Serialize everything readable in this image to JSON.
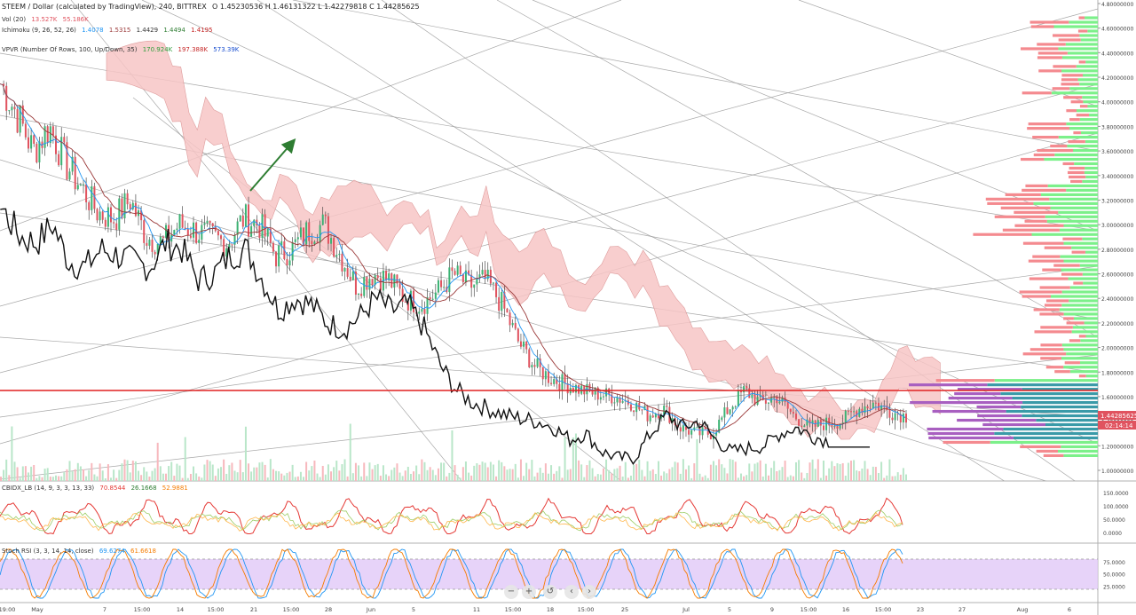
{
  "header": {
    "title": "STEEM / Dollar (calculated by TradingView), 240, BITTREX",
    "ohlc": "O 1.45230536  H 1.46131322  L 1.42279818  C 1.44285625",
    "vol_label": "Vol (20)",
    "vol_values": [
      "13.527K",
      "55.186K"
    ],
    "ichimoku_label": "Ichimoku (9, 26, 52, 26)",
    "ichimoku_values": [
      "1.4078",
      "1.5315",
      "1.4429",
      "1.4494",
      "1.4195"
    ],
    "vpvr_label": "VPVR (Number Of Rows, 100, Up/Down, 35)",
    "vpvr_values": [
      "170.924K",
      "197.388K",
      "573.39K"
    ]
  },
  "indicators": {
    "cbidx_label": "CBIDX_LB (14, 9, 3, 3, 13, 33)",
    "cbidx_values": [
      "70.8544",
      "26.1668",
      "52.9881"
    ],
    "stoch_label": "Stoch RSI (3, 3, 14, 14, close)",
    "stoch_values": [
      "69.6274",
      "61.6618"
    ]
  },
  "colors": {
    "up": "#3bb273",
    "down": "#e0535f",
    "resistance": "#e02020",
    "kijun": "#9b3a3a",
    "tenkan": "#2196f3",
    "cloud_bear": "#f7c6c6",
    "cloud_bull": "#d6ecd2",
    "arrow": "#2e7d32",
    "vpvr_up": "#7cf08a",
    "vpvr_down": "#f48a8f",
    "vpvr_va_up": "#3a9aa8",
    "vpvr_va_down": "#a85fc0",
    "cbidx_fast": "#e53935",
    "cbidx_slow": "#9ccc65",
    "cbidx_sig": "#ffb74d",
    "stoch_k": "#2196f3",
    "stoch_d": "#f57c00",
    "stoch_band": "#e1c8f7"
  },
  "price_axis": {
    "ticks": [
      "4.80000000",
      "4.60000000",
      "4.40000000",
      "4.20000000",
      "4.00000000",
      "3.80000000",
      "3.60000000",
      "3.40000000",
      "3.20000000",
      "3.00000000",
      "2.80000000",
      "2.60000000",
      "2.40000000",
      "2.20000000",
      "2.00000000",
      "1.80000000",
      "1.60000000",
      "1.40000000",
      "1.20000000",
      "1.00000000"
    ],
    "last_price": "1.44285625",
    "countdown": "02:14:14"
  },
  "cbidx_axis": [
    "150.0000",
    "100.0000",
    "50.0000",
    "0.0000"
  ],
  "stoch_axis": [
    "75.0000",
    "50.0000",
    "25.0000"
  ],
  "time_axis": {
    "labels": [
      "19:00",
      "May",
      "7",
      "15:00",
      "14",
      "15:00",
      "21",
      "15:00",
      "28",
      "Jun",
      "5",
      "11",
      "15:00",
      "18",
      "15:00",
      "25",
      "Jul",
      "5",
      "9",
      "15:00",
      "16",
      "15:00",
      "23",
      "27",
      "Aug",
      "6"
    ]
  },
  "toolbar": [
    "−",
    "+",
    "↺",
    "‹",
    "›"
  ],
  "chart_data": {
    "type": "candlestick",
    "title": "STEEM / Dollar (calculated by TradingView), 240, BITTREX",
    "close_path": [
      4.15,
      3.9,
      3.6,
      3.8,
      3.5,
      3.3,
      3.1,
      3.05,
      3.2,
      2.9,
      2.85,
      3.0,
      2.95,
      2.9,
      2.85,
      3.05,
      3.0,
      2.75,
      2.8,
      2.95,
      3.0,
      2.75,
      2.5,
      2.6,
      2.55,
      2.4,
      2.35,
      2.45,
      2.6,
      2.5,
      2.55,
      2.35,
      2.05,
      1.85,
      1.75,
      1.7,
      1.65,
      1.62,
      1.6,
      1.55,
      1.45,
      1.5,
      1.35,
      1.3,
      1.3,
      1.5,
      1.65,
      1.55,
      1.6,
      1.45,
      1.35,
      1.38,
      1.4,
      1.5,
      1.55,
      1.48,
      1.44
    ],
    "resistance_level": 1.65,
    "ylim": [
      0.95,
      4.85
    ],
    "volume_profile": "right-side VPVR histogram"
  }
}
